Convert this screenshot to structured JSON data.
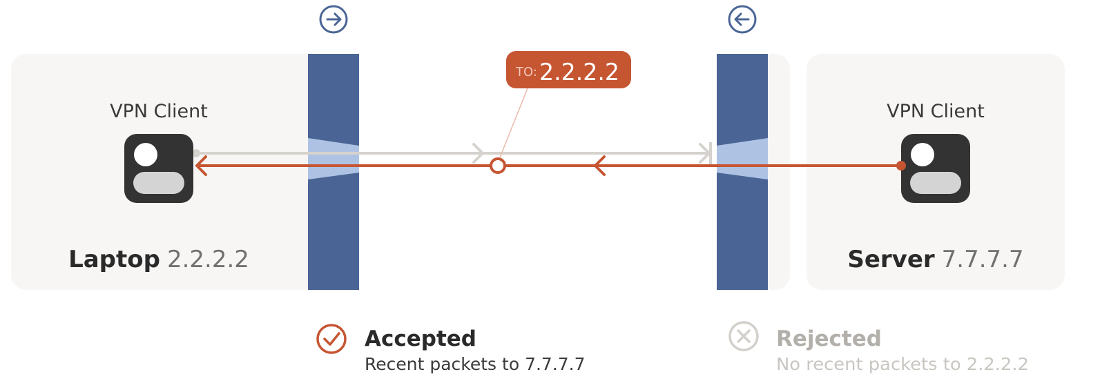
{
  "left_host": {
    "role_label": "VPN Client",
    "name": "Laptop",
    "ip": "2.2.2.2"
  },
  "right_host": {
    "role_label": "VPN Client",
    "name": "Server",
    "ip": "7.7.7.7"
  },
  "packet_tag": {
    "prefix": "TO:",
    "ip": "2.2.2.2"
  },
  "status_left": {
    "title": "Accepted",
    "detail": "Recent packets to 7.7.7.7",
    "icon": "check-circle-icon"
  },
  "status_right": {
    "title": "Rejected",
    "detail": "No recent packets to 2.2.2.2",
    "icon": "x-circle-icon"
  },
  "firewall_left": {
    "icon": "arrow-right-circle-icon"
  },
  "firewall_right": {
    "icon": "arrow-left-circle-icon"
  },
  "colors": {
    "panel": "#f7f6f4",
    "firewall": "#4a6595",
    "firewall_opening": "#aec3e3",
    "outbound_line": "#d6d3ce",
    "inbound_line": "#c65532",
    "tag_bg": "#c65532",
    "icon_dark": "#333333",
    "icon_light": "#d4d4d4",
    "text_dark": "#2a2a2a",
    "text_gray": "#707070",
    "text_faded": "#c9c6c1"
  }
}
